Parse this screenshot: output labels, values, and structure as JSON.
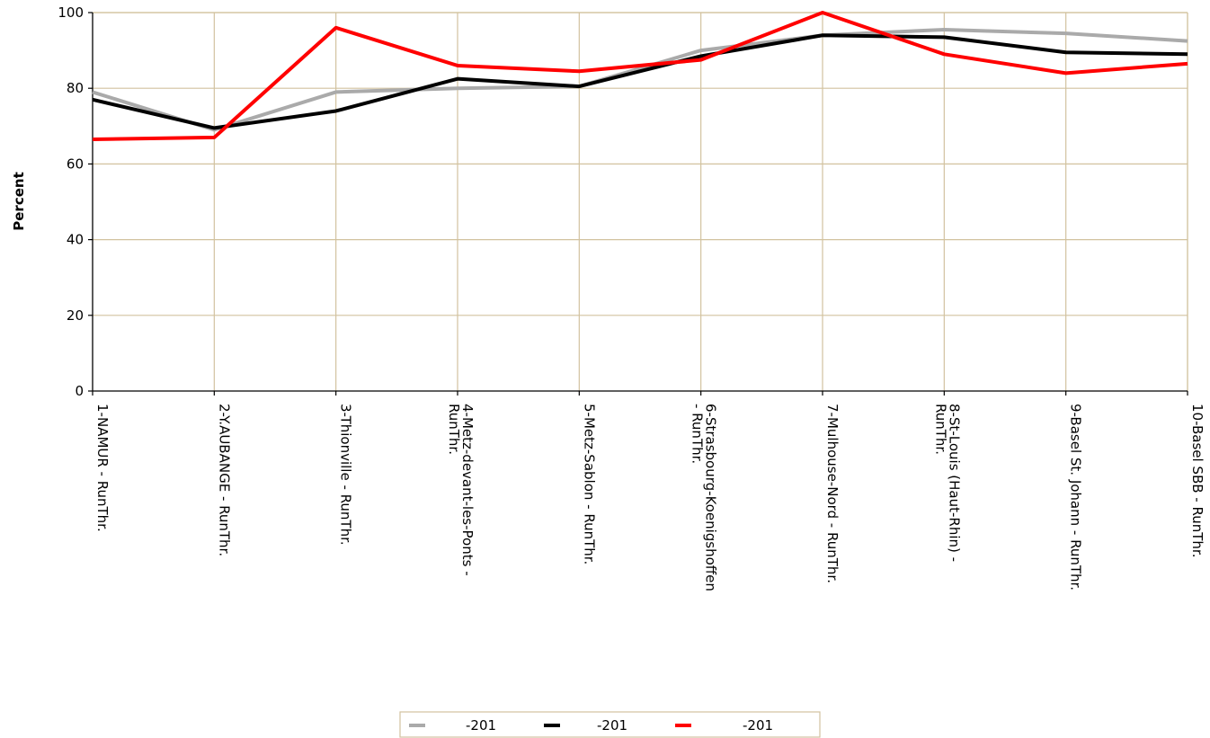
{
  "chart_data": {
    "type": "line",
    "title": "",
    "xlabel": "",
    "ylabel": "Percent",
    "ylim": [
      0,
      100
    ],
    "yticks": [
      0,
      20,
      40,
      60,
      80,
      100
    ],
    "grid": true,
    "legend_position": "bottom",
    "categories": [
      [
        "1-NAMUR - RunThr."
      ],
      [
        "2-Y.AUBANGE - RunThr."
      ],
      [
        "3-Thionville - RunThr."
      ],
      [
        "4-Metz-devant-les-Ponts -",
        "RunThr."
      ],
      [
        "5-Metz-Sablon - RunThr."
      ],
      [
        "6-Strasbourg-Koenigshoffen",
        "- RunThr."
      ],
      [
        "7-Mulhouse-Nord - RunThr."
      ],
      [
        "8-St-Louis (Haut-Rhin) -",
        "RunThr."
      ],
      [
        "9-Basel St. Johann - RunThr."
      ],
      [
        "10-Basel SBB - RunThr."
      ]
    ],
    "series": [
      {
        "name": "-201",
        "color": "#aaaaaa",
        "values": [
          79,
          69,
          79,
          80,
          80.5,
          90,
          94,
          95.5,
          94.5,
          92.5
        ]
      },
      {
        "name": "-201",
        "color": "#000000",
        "values": [
          77,
          69.5,
          74,
          82.5,
          80.5,
          88.5,
          94,
          93.5,
          89.5,
          89
        ]
      },
      {
        "name": "-201",
        "color": "#ff0000",
        "values": [
          66.5,
          67,
          96,
          86,
          84.5,
          87.5,
          100,
          89,
          84,
          86.5
        ]
      }
    ],
    "colors": {
      "plot_background": "#ffffff",
      "grid": "#d2c29f",
      "axis": "#000000"
    }
  }
}
